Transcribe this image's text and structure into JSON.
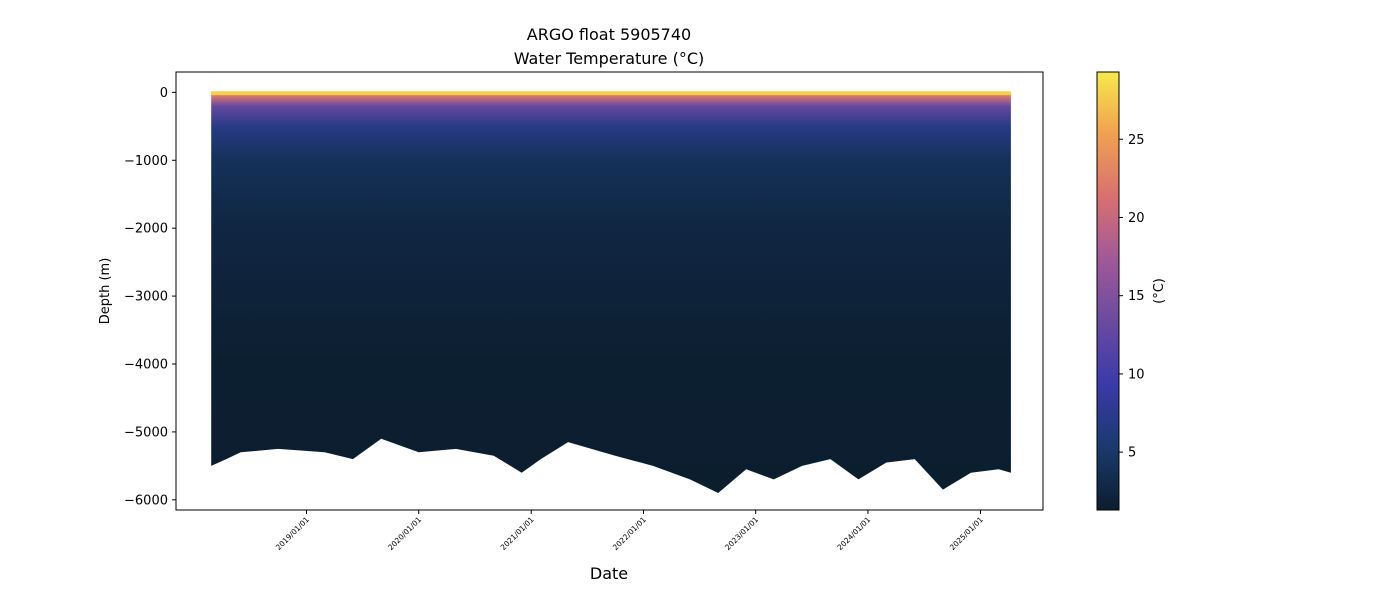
{
  "chart_data": {
    "type": "heatmap",
    "title": "ARGO float 5905740",
    "subtitle": "Water Temperature (°C)",
    "xlabel": "Date",
    "ylabel": "Depth (m)",
    "x_range": [
      "2018-02-15",
      "2025-04-10"
    ],
    "y_range": [
      -6150,
      300
    ],
    "x_ticks": [
      "2019/01/01",
      "2020/01/01",
      "2021/01/01",
      "2022/01/01",
      "2023/01/01",
      "2024/01/01",
      "2025/01/01"
    ],
    "y_ticks": [
      0,
      -1000,
      -2000,
      -3000,
      -4000,
      -5000,
      -6000
    ],
    "grid": false,
    "colorbar": {
      "label": "(°C)",
      "range": [
        1.3,
        29.3
      ],
      "ticks": [
        5,
        10,
        15,
        20,
        25
      ],
      "colormap": [
        "#0b1e2e",
        "#1a3a6e",
        "#3a3aa8",
        "#6a4aa0",
        "#a0589a",
        "#d87070",
        "#f0a050",
        "#f7e94a"
      ]
    },
    "temperature_profile": [
      {
        "depth": 0,
        "temp": 28
      },
      {
        "depth": -50,
        "temp": 22
      },
      {
        "depth": -200,
        "temp": 13
      },
      {
        "depth": -500,
        "temp": 7
      },
      {
        "depth": -1000,
        "temp": 4
      },
      {
        "depth": -2000,
        "temp": 2.5
      },
      {
        "depth": -4000,
        "temp": 1.5
      },
      {
        "depth": -6000,
        "temp": 1.3
      }
    ],
    "max_depth": [
      {
        "date": "2018-02-25",
        "depth": -5500
      },
      {
        "date": "2018-04-15",
        "depth": -5400
      },
      {
        "date": "2018-06-01",
        "depth": -5300
      },
      {
        "date": "2018-10-01",
        "depth": -5250
      },
      {
        "date": "2019-03-01",
        "depth": -5300
      },
      {
        "date": "2019-06-01",
        "depth": -5400
      },
      {
        "date": "2019-09-01",
        "depth": -5100
      },
      {
        "date": "2020-01-01",
        "depth": -5300
      },
      {
        "date": "2020-05-01",
        "depth": -5250
      },
      {
        "date": "2020-09-01",
        "depth": -5350
      },
      {
        "date": "2020-12-01",
        "depth": -5600
      },
      {
        "date": "2021-02-01",
        "depth": -5400
      },
      {
        "date": "2021-05-01",
        "depth": -5150
      },
      {
        "date": "2021-10-01",
        "depth": -5350
      },
      {
        "date": "2022-02-01",
        "depth": -5500
      },
      {
        "date": "2022-06-01",
        "depth": -5700
      },
      {
        "date": "2022-09-01",
        "depth": -5900
      },
      {
        "date": "2022-12-01",
        "depth": -5550
      },
      {
        "date": "2023-03-01",
        "depth": -5700
      },
      {
        "date": "2023-06-01",
        "depth": -5500
      },
      {
        "date": "2023-09-01",
        "depth": -5400
      },
      {
        "date": "2023-12-01",
        "depth": -5700
      },
      {
        "date": "2024-03-01",
        "depth": -5450
      },
      {
        "date": "2024-06-01",
        "depth": -5400
      },
      {
        "date": "2024-09-01",
        "depth": -5850
      },
      {
        "date": "2024-12-01",
        "depth": -5600
      },
      {
        "date": "2025-03-01",
        "depth": -5550
      },
      {
        "date": "2025-04-10",
        "depth": -5600
      }
    ]
  }
}
